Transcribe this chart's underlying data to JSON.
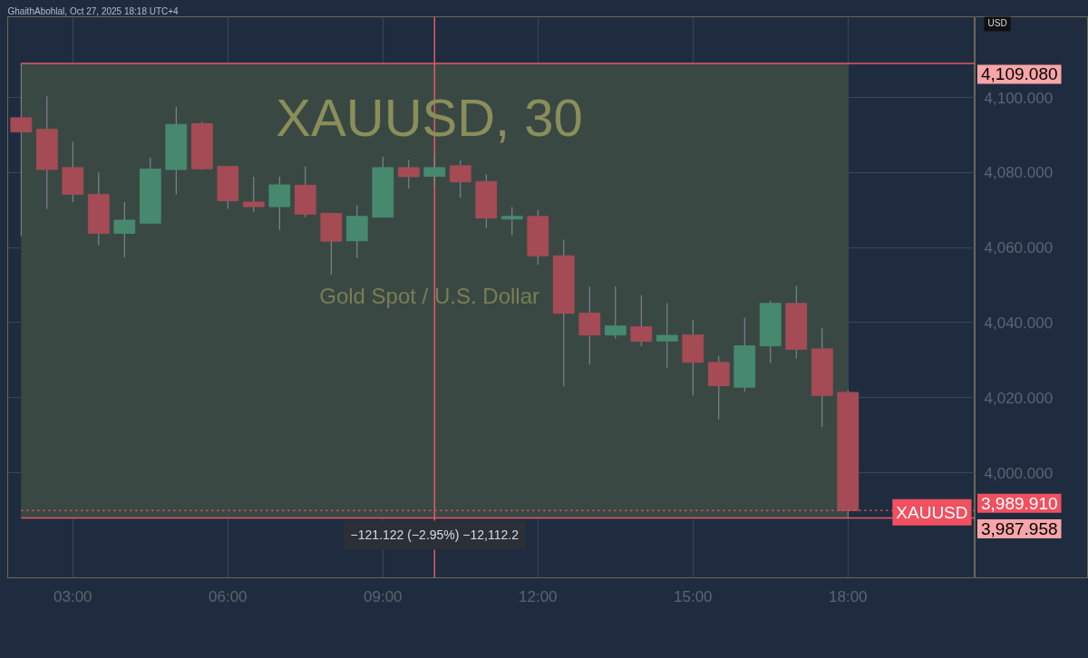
{
  "chart_data": {
    "type": "candlestick",
    "title": "XAUUSD, 30",
    "subtitle": "Gold Spot / U.S. Dollar",
    "x": [
      2,
      2.5,
      3,
      3.5,
      4,
      4.5,
      5,
      5.5,
      6,
      6.5,
      7,
      7.5,
      8,
      8.5,
      9,
      9.5,
      10,
      10.5,
      11,
      11.5,
      12,
      12.5,
      13,
      13.5,
      14,
      14.5,
      15,
      15.5,
      16,
      16.5,
      17,
      17.5,
      18
    ],
    "ohlc": [
      [
        4094.6,
        4109.08,
        4063.0,
        4090.8
      ],
      [
        4091.5,
        4100.3,
        4070.3,
        4080.8
      ],
      [
        4081.3,
        4088.2,
        4072.1,
        4074.2
      ],
      [
        4074.2,
        4080.0,
        4060.6,
        4063.8
      ],
      [
        4063.8,
        4072.1,
        4057.4,
        4067.3
      ],
      [
        4066.5,
        4084.0,
        4066.5,
        4080.9
      ],
      [
        4080.8,
        4097.5,
        4074.2,
        4092.8
      ],
      [
        4093.0,
        4093.5,
        4080.8,
        4081.0
      ],
      [
        4081.6,
        4081.6,
        4070.3,
        4072.5
      ],
      [
        4072.1,
        4078.9,
        4069.5,
        4070.9
      ],
      [
        4070.9,
        4078.9,
        4064.7,
        4076.7
      ],
      [
        4076.6,
        4081.6,
        4068.1,
        4068.9
      ],
      [
        4069.1,
        4069.1,
        4052.8,
        4061.7
      ],
      [
        4061.8,
        4071.3,
        4057.2,
        4068.3
      ],
      [
        4068.1,
        4084.2,
        4068.1,
        4081.3
      ],
      [
        4081.3,
        4083.4,
        4075.7,
        4078.9
      ],
      [
        4079.0,
        4084.8,
        4076.7,
        4081.3
      ],
      [
        4081.8,
        4083.2,
        4073.3,
        4077.5
      ],
      [
        4077.6,
        4079.5,
        4065.2,
        4067.9
      ],
      [
        4067.6,
        4070.8,
        4063.3,
        4068.3
      ],
      [
        4068.3,
        4070.0,
        4055.4,
        4057.8
      ],
      [
        4057.8,
        4062.1,
        4023.0,
        4042.5
      ],
      [
        4042.5,
        4049.6,
        4028.8,
        4036.7
      ],
      [
        4036.7,
        4049.6,
        4035.7,
        4039.1
      ],
      [
        4038.9,
        4047.3,
        4033.7,
        4035.0
      ],
      [
        4035.1,
        4045.2,
        4027.9,
        4036.6
      ],
      [
        4036.7,
        4040.7,
        4020.6,
        4029.4
      ],
      [
        4029.4,
        4031.1,
        4014.2,
        4023.2
      ],
      [
        4022.8,
        4041.3,
        4021.6,
        4033.8
      ],
      [
        4033.8,
        4045.9,
        4029.2,
        4045.1
      ],
      [
        4045.1,
        4049.8,
        4030.4,
        4032.9
      ],
      [
        4033.0,
        4038.5,
        4012.2,
        4020.6
      ],
      [
        4021.4,
        4022.0,
        3987.958,
        3989.91
      ]
    ],
    "colors": [
      "#a54b55",
      "#a54b55",
      "#a54b55",
      "#a54b55",
      "#46896f",
      "#46896f",
      "#46896f",
      "#a54b55",
      "#a54b55",
      "#a54b55",
      "#46896f",
      "#a54b55",
      "#a54b55",
      "#46896f",
      "#46896f",
      "#a54b55",
      "#46896f",
      "#a54b55",
      "#a54b55",
      "#46896f",
      "#a54b55",
      "#a54b55",
      "#a54b55",
      "#46896f",
      "#a54b55",
      "#46896f",
      "#a54b55",
      "#a54b55",
      "#46896f",
      "#46896f",
      "#a54b55",
      "#a54b55",
      "#a54b55"
    ],
    "xlim": [
      1.74,
      20.46
    ],
    "ylim": [
      3972.0,
      4121.5
    ],
    "xticks": [
      {
        "value": 3,
        "label": "03:00"
      },
      {
        "value": 6,
        "label": "06:00"
      },
      {
        "value": 9,
        "label": "09:00"
      },
      {
        "value": 12,
        "label": "12:00"
      },
      {
        "value": 15,
        "label": "15:00"
      },
      {
        "value": 18,
        "label": "18:00"
      }
    ],
    "yticks": [
      {
        "value": 4000,
        "label": "4,000.000"
      },
      {
        "value": 4020,
        "label": "4,020.000"
      },
      {
        "value": 4040,
        "label": "4,040.000"
      },
      {
        "value": 4060,
        "label": "4,060.000"
      },
      {
        "value": 4080,
        "label": "4,080.000"
      },
      {
        "value": 4100,
        "label": "4,100.000"
      }
    ],
    "grid": true,
    "bands": [
      {
        "axis": "y",
        "from": 3987.958,
        "to": 4109.08,
        "color": "#3a4844"
      }
    ],
    "ref_lines": [
      {
        "axis": "y",
        "value": 4109.08,
        "label": "4,109.080",
        "color": "#e05a66"
      },
      {
        "axis": "y",
        "value": 3987.958,
        "label": "3,987.958",
        "color": "#e05a66"
      },
      {
        "axis": "y",
        "value": 3989.91,
        "label": "3,989.910",
        "color": "#f0505f",
        "line_style": "dotted"
      },
      {
        "axis": "x",
        "value": 10,
        "color": "#e05a66"
      }
    ],
    "annotations": [
      "GhaithAbohlal, Oct 27, 2025 18:18 UTC+4",
      "USD",
      {
        "text": "−121.122 (−2.95%) −12,112.2",
        "x": 10,
        "y": 3987.958
      },
      {
        "text": "XAUUSD",
        "x": 20.46,
        "y": 3989.91
      }
    ]
  }
}
